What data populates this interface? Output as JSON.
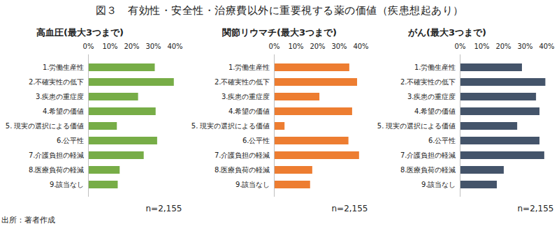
{
  "title": "図３　有効性・安全性・治療費以外に重要視する薬の価値（疾患想起あり）",
  "source": "出所：著者作成",
  "chart_data": [
    {
      "type": "bar",
      "orientation": "horizontal",
      "title": "高血圧(最大3つまで)",
      "categories": [
        "1.労働生産性",
        "2.不確実性の低下",
        "3.疾患の重症度",
        "4.希望の価値",
        "5. 現実の選択による価値",
        "6.公平性",
        "7.介護負担の軽減",
        "8.医療負荷の軽減",
        "9.該当なし"
      ],
      "values": [
        30.8,
        39.6,
        23.1,
        31.2,
        13.3,
        31.9,
        25.7,
        14.6,
        13.7
      ],
      "color": "#77ad47",
      "xlim": [
        0,
        40
      ],
      "xticks": [
        {
          "value": 0,
          "label": "0%"
        },
        {
          "value": 10,
          "label": "10%"
        },
        {
          "value": 20,
          "label": "20%"
        },
        {
          "value": 30,
          "label": "30%"
        },
        {
          "value": 40,
          "label": "40%"
        }
      ],
      "annotations": [
        "n=2,155"
      ],
      "grid": false
    },
    {
      "type": "bar",
      "orientation": "horizontal",
      "title": "関節リウマチ(最大3つまで)",
      "categories": [
        "1.労働生産性",
        "2.不確実性の低下",
        "3.疾患の重症度",
        "4.希望の価値",
        "5. 現実の選択による価値",
        "6.公平性",
        "7.介護負担の軽減",
        "8.医療負荷の軽減",
        "9.該当なし"
      ],
      "values": [
        34.8,
        38.4,
        21.0,
        36.1,
        4.9,
        34.4,
        39.3,
        17.7,
        16.7
      ],
      "color": "#ed7d31",
      "xlim": [
        0,
        40
      ],
      "xticks": [
        {
          "value": 0,
          "label": "0%"
        },
        {
          "value": 10,
          "label": "10%"
        },
        {
          "value": 20,
          "label": "20%"
        },
        {
          "value": 30,
          "label": "30%"
        },
        {
          "value": 40,
          "label": "40%"
        }
      ],
      "annotations": [
        "n=2,155"
      ],
      "grid": false
    },
    {
      "type": "bar",
      "orientation": "horizontal",
      "title": "がん(最大3つまで)",
      "categories": [
        "1.労働生産性",
        "2.不確実性の低下",
        "3.疾患の重症度",
        "4.希望の価値",
        "5. 現実の選択による価値",
        "6.公平性",
        "7.介護負担の軽減",
        "8.医療負荷の軽減",
        "9.該当なし"
      ],
      "values": [
        28.7,
        39.5,
        35.2,
        36.8,
        26.5,
        36.8,
        39.0,
        20.3,
        17.1
      ],
      "color": "#44546a",
      "xlim": [
        0,
        40
      ],
      "xticks": [
        {
          "value": 0,
          "label": "0%"
        },
        {
          "value": 10,
          "label": "10%"
        },
        {
          "value": 20,
          "label": "20%"
        },
        {
          "value": 30,
          "label": "30%"
        },
        {
          "value": 40,
          "label": "40%"
        }
      ],
      "annotations": [
        "n=2,155"
      ],
      "grid": false
    }
  ]
}
